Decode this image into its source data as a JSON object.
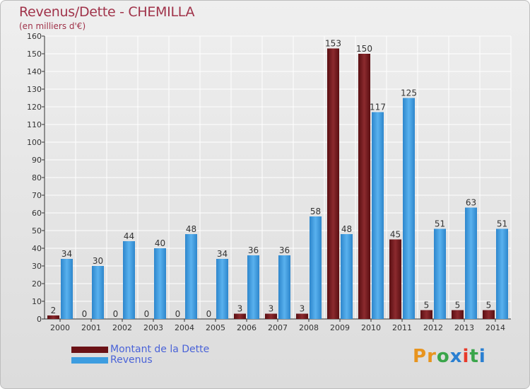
{
  "chart_data": {
    "type": "bar",
    "title": "Revenus/Dette - CHEMILLA",
    "subtitle": "(en milliers d'€)",
    "categories": [
      "2000",
      "2001",
      "2002",
      "2003",
      "2004",
      "2005",
      "2006",
      "2007",
      "2008",
      "2009",
      "2010",
      "2011",
      "2012",
      "2013",
      "2014"
    ],
    "series": [
      {
        "name": "Montant de la Dette",
        "color": "#7a1a1f",
        "values": [
          2,
          0,
          0,
          0,
          0,
          0,
          3,
          3,
          3,
          153,
          150,
          45,
          5,
          5,
          5
        ]
      },
      {
        "name": "Revenus",
        "color": "#3d9de0",
        "values": [
          34,
          30,
          44,
          40,
          48,
          34,
          36,
          36,
          58,
          48,
          117,
          125,
          51,
          63,
          51
        ]
      }
    ],
    "ylim": [
      0,
      160
    ],
    "yticks": [
      0,
      10,
      20,
      30,
      40,
      50,
      60,
      70,
      80,
      90,
      100,
      110,
      120,
      130,
      140,
      150,
      160
    ],
    "grid": true
  },
  "logo": {
    "letters": [
      "P",
      "r",
      "o",
      "x",
      "i",
      "t",
      "i"
    ],
    "colors": [
      "#e8941e",
      "#e8941e",
      "#3aa54a",
      "#2a7fd1",
      "#e83a2a",
      "#3aa54a",
      "#2a7fd1"
    ]
  }
}
